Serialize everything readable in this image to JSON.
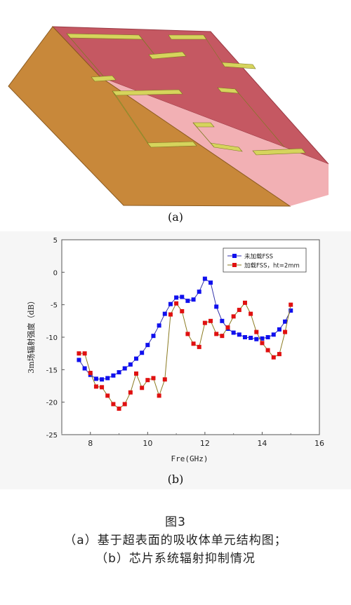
{
  "figure": {
    "panel_a_label": "(a)",
    "panel_b_label": "(b)",
    "caption_title": "图3",
    "caption_line1": "（a）基于超表面的吸收体单元结构图；",
    "caption_line2": "（b）芯片系统辐射抑制情况"
  },
  "colors": {
    "substrate_top": "#c55862",
    "substrate_side": "#f2b0b4",
    "ground": "#c8883a",
    "metal": "#d6d45c",
    "series_blue": "#1010ee",
    "series_red": "#e01010"
  },
  "chart_data": {
    "type": "line",
    "title": "",
    "xlabel": "Fre(GHz)",
    "ylabel": "3m场辐射强度（dB）",
    "xlim": [
      7,
      16
    ],
    "ylim": [
      -25,
      5
    ],
    "xticks": [
      8,
      10,
      12,
      14,
      16
    ],
    "yticks": [
      5,
      0,
      -5,
      -10,
      -15,
      -20,
      -25
    ],
    "legend_position": "top-right",
    "grid": false,
    "series": [
      {
        "name": "未加载FSS",
        "color": "#1010ee",
        "marker": "square",
        "x": [
          7.6,
          7.8,
          8.0,
          8.2,
          8.4,
          8.6,
          8.8,
          9.0,
          9.2,
          9.4,
          9.6,
          9.8,
          10.0,
          10.2,
          10.4,
          10.6,
          10.8,
          11.0,
          11.2,
          11.4,
          11.6,
          11.8,
          12.0,
          12.2,
          12.4,
          12.6,
          12.8,
          13.0,
          13.2,
          13.4,
          13.6,
          13.8,
          14.0,
          14.2,
          14.4,
          14.6,
          14.8,
          15.0
        ],
        "y": [
          -13.5,
          -14.8,
          -15.8,
          -16.4,
          -16.5,
          -16.3,
          -15.9,
          -15.4,
          -14.8,
          -14.2,
          -13.3,
          -12.4,
          -11.2,
          -9.8,
          -8.2,
          -6.4,
          -4.9,
          -3.9,
          -3.8,
          -4.4,
          -4.2,
          -3.0,
          -1.0,
          -1.6,
          -5.3,
          -7.5,
          -8.7,
          -9.3,
          -9.6,
          -10.0,
          -10.1,
          -10.3,
          -10.2,
          -10.0,
          -9.6,
          -8.8,
          -7.6,
          -5.9
        ]
      },
      {
        "name": "加载FSS，ht=2mm",
        "color": "#e01010",
        "marker": "square",
        "x": [
          7.6,
          7.8,
          8.0,
          8.2,
          8.4,
          8.6,
          8.8,
          9.0,
          9.2,
          9.4,
          9.6,
          9.8,
          10.0,
          10.2,
          10.4,
          10.6,
          10.8,
          11.0,
          11.2,
          11.4,
          11.6,
          11.8,
          12.0,
          12.2,
          12.4,
          12.6,
          12.8,
          13.0,
          13.2,
          13.4,
          13.6,
          13.8,
          14.0,
          14.2,
          14.4,
          14.6,
          14.8,
          15.0
        ],
        "y": [
          -12.5,
          -12.5,
          -15.5,
          -17.6,
          -17.7,
          -19.0,
          -20.3,
          -21.0,
          -20.3,
          -18.5,
          -15.6,
          -17.8,
          -16.6,
          -16.3,
          -19.0,
          -16.5,
          -6.5,
          -4.8,
          -6.0,
          -9.5,
          -11.0,
          -11.5,
          -7.8,
          -7.5,
          -9.5,
          -9.8,
          -8.5,
          -6.8,
          -5.8,
          -4.7,
          -6.4,
          -9.2,
          -10.9,
          -12.0,
          -13.1,
          -12.6,
          -9.2,
          -5.0
        ]
      }
    ]
  }
}
